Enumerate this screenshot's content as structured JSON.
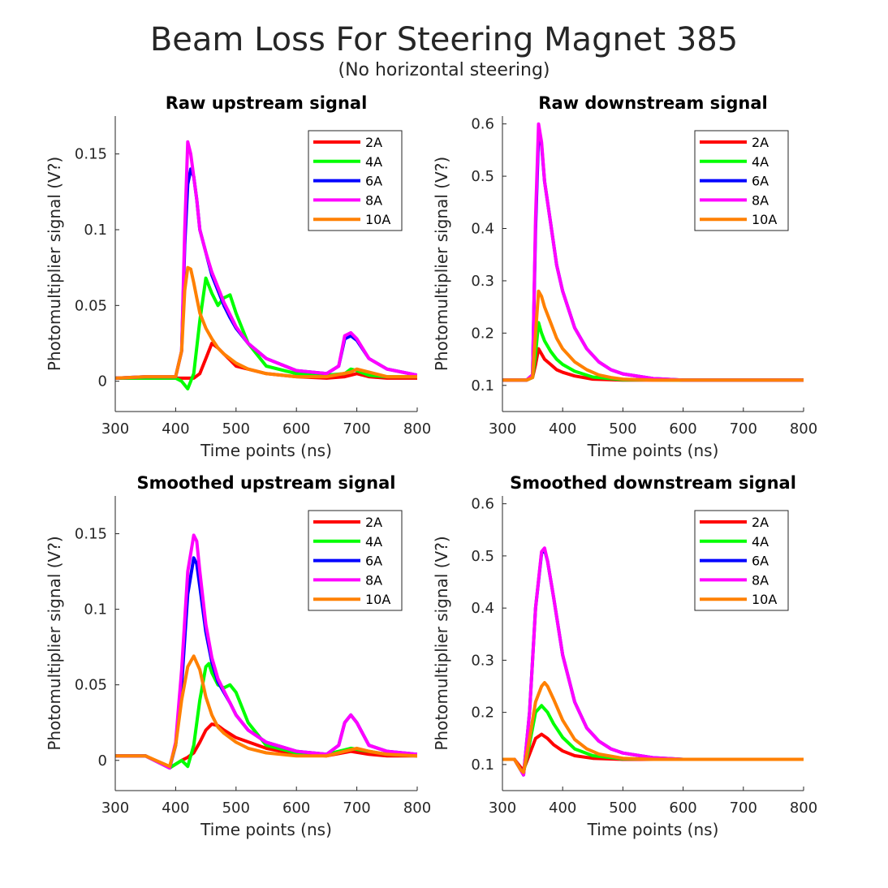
{
  "figure": {
    "title": "Beam Loss For Steering Magnet 385",
    "subtitle": "(No horizontal steering)"
  },
  "colors": {
    "2A": "#ff0000",
    "4A": "#00ff00",
    "6A": "#0000ff",
    "8A": "#ff00ff",
    "10A": "#ff8000"
  },
  "chart_data": [
    {
      "type": "line",
      "title": "Raw upstream signal",
      "xlabel": "Time points (ns)",
      "ylabel": "Photomultiplier signal (V?)",
      "xlim": [
        300,
        800
      ],
      "ylim": [
        -0.02,
        0.175
      ],
      "xticks": [
        300,
        400,
        500,
        600,
        700,
        800
      ],
      "yticks": [
        0,
        0.05,
        0.1,
        0.15
      ],
      "ytick_labels": [
        "0",
        "0.05",
        "0.1",
        "0.15"
      ],
      "legend": "top-right",
      "series": [
        {
          "name": "2A",
          "color": "#ff0000",
          "x": [
            300,
            350,
            400,
            430,
            440,
            450,
            460,
            470,
            480,
            490,
            500,
            550,
            600,
            650,
            680,
            700,
            720,
            750,
            800
          ],
          "y": [
            0.002,
            0.002,
            0.002,
            0.002,
            0.005,
            0.015,
            0.025,
            0.022,
            0.018,
            0.014,
            0.01,
            0.005,
            0.003,
            0.002,
            0.003,
            0.005,
            0.003,
            0.002,
            0.002
          ]
        },
        {
          "name": "4A",
          "color": "#00ff00",
          "x": [
            300,
            350,
            400,
            410,
            420,
            430,
            440,
            450,
            460,
            470,
            480,
            490,
            500,
            520,
            550,
            600,
            650,
            680,
            690,
            700,
            720,
            750,
            800
          ],
          "y": [
            0.002,
            0.002,
            0.002,
            0.0,
            -0.005,
            0.005,
            0.04,
            0.068,
            0.058,
            0.05,
            0.055,
            0.057,
            0.045,
            0.025,
            0.01,
            0.005,
            0.004,
            0.005,
            0.008,
            0.007,
            0.004,
            0.003,
            0.003
          ]
        },
        {
          "name": "6A",
          "color": "#0000ff",
          "x": [
            300,
            350,
            400,
            410,
            415,
            420,
            425,
            430,
            435,
            440,
            450,
            460,
            470,
            480,
            490,
            500,
            520,
            550,
            600,
            650,
            670,
            680,
            690,
            700,
            720,
            750,
            800
          ],
          "y": [
            0.002,
            0.003,
            0.003,
            0.02,
            0.09,
            0.13,
            0.14,
            0.135,
            0.12,
            0.1,
            0.085,
            0.07,
            0.06,
            0.05,
            0.042,
            0.035,
            0.025,
            0.015,
            0.007,
            0.005,
            0.01,
            0.028,
            0.03,
            0.027,
            0.015,
            0.008,
            0.004
          ]
        },
        {
          "name": "8A",
          "color": "#ff00ff",
          "x": [
            300,
            350,
            400,
            410,
            415,
            420,
            425,
            430,
            435,
            440,
            450,
            460,
            470,
            480,
            490,
            500,
            520,
            550,
            600,
            650,
            670,
            680,
            690,
            700,
            720,
            750,
            800
          ],
          "y": [
            0.002,
            0.003,
            0.003,
            0.02,
            0.1,
            0.158,
            0.15,
            0.135,
            0.12,
            0.1,
            0.085,
            0.072,
            0.062,
            0.052,
            0.044,
            0.036,
            0.025,
            0.015,
            0.007,
            0.005,
            0.01,
            0.03,
            0.032,
            0.028,
            0.015,
            0.008,
            0.004
          ]
        },
        {
          "name": "10A",
          "color": "#ff8000",
          "x": [
            300,
            350,
            400,
            410,
            415,
            420,
            425,
            430,
            435,
            440,
            450,
            460,
            470,
            480,
            500,
            520,
            550,
            600,
            650,
            690,
            700,
            720,
            750,
            800
          ],
          "y": [
            0.002,
            0.003,
            0.003,
            0.02,
            0.06,
            0.075,
            0.074,
            0.065,
            0.055,
            0.045,
            0.035,
            0.028,
            0.022,
            0.018,
            0.012,
            0.008,
            0.005,
            0.003,
            0.003,
            0.006,
            0.008,
            0.006,
            0.003,
            0.003
          ]
        }
      ]
    },
    {
      "type": "line",
      "title": "Raw downstream signal",
      "xlabel": "Time points (ns)",
      "ylabel": "Photomultiplier signal (V?)",
      "xlim": [
        300,
        800
      ],
      "ylim": [
        0.05,
        0.615
      ],
      "xticks": [
        300,
        400,
        500,
        600,
        700,
        800
      ],
      "yticks": [
        0.1,
        0.2,
        0.3,
        0.4,
        0.5,
        0.6
      ],
      "ytick_labels": [
        "0.1",
        "0.2",
        "0.3",
        "0.4",
        "0.5",
        "0.6"
      ],
      "legend": "top-right",
      "series": [
        {
          "name": "2A",
          "color": "#ff0000",
          "x": [
            300,
            340,
            350,
            355,
            360,
            365,
            370,
            380,
            390,
            400,
            420,
            450,
            500,
            600,
            800
          ],
          "y": [
            0.11,
            0.11,
            0.115,
            0.14,
            0.17,
            0.16,
            0.15,
            0.14,
            0.13,
            0.125,
            0.118,
            0.112,
            0.11,
            0.11,
            0.11
          ]
        },
        {
          "name": "4A",
          "color": "#00ff00",
          "x": [
            300,
            340,
            350,
            355,
            360,
            365,
            370,
            380,
            390,
            400,
            420,
            450,
            500,
            600,
            800
          ],
          "y": [
            0.11,
            0.11,
            0.115,
            0.16,
            0.22,
            0.2,
            0.185,
            0.165,
            0.15,
            0.14,
            0.127,
            0.116,
            0.111,
            0.11,
            0.11
          ]
        },
        {
          "name": "6A",
          "color": "#0000ff",
          "x": [
            300,
            340,
            350,
            355,
            360,
            365,
            370,
            380,
            390,
            400,
            420,
            440,
            460,
            480,
            500,
            550,
            600,
            700,
            800
          ],
          "y": [
            0.11,
            0.11,
            0.12,
            0.4,
            0.58,
            0.56,
            0.49,
            0.41,
            0.33,
            0.28,
            0.21,
            0.17,
            0.145,
            0.13,
            0.122,
            0.113,
            0.11,
            0.11,
            0.11
          ]
        },
        {
          "name": "8A",
          "color": "#ff00ff",
          "x": [
            300,
            340,
            350,
            355,
            360,
            365,
            370,
            380,
            390,
            400,
            420,
            440,
            460,
            480,
            500,
            550,
            600,
            700,
            800
          ],
          "y": [
            0.11,
            0.11,
            0.12,
            0.42,
            0.6,
            0.565,
            0.49,
            0.41,
            0.33,
            0.28,
            0.21,
            0.17,
            0.145,
            0.13,
            0.122,
            0.113,
            0.11,
            0.11,
            0.11
          ]
        },
        {
          "name": "10A",
          "color": "#ff8000",
          "x": [
            300,
            340,
            350,
            355,
            360,
            365,
            370,
            380,
            390,
            400,
            420,
            440,
            460,
            480,
            500,
            550,
            600,
            800
          ],
          "y": [
            0.11,
            0.11,
            0.115,
            0.2,
            0.28,
            0.27,
            0.25,
            0.22,
            0.19,
            0.17,
            0.145,
            0.13,
            0.12,
            0.115,
            0.112,
            0.11,
            0.11,
            0.11
          ]
        }
      ]
    },
    {
      "type": "line",
      "title": "Smoothed upstream signal",
      "xlabel": "Time points (ns)",
      "ylabel": "Photomultiplier signal (V?)",
      "xlim": [
        300,
        800
      ],
      "ylim": [
        -0.02,
        0.175
      ],
      "xticks": [
        300,
        400,
        500,
        600,
        700,
        800
      ],
      "yticks": [
        0,
        0.05,
        0.1,
        0.15
      ],
      "ytick_labels": [
        "0",
        "0.05",
        "0.1",
        "0.15"
      ],
      "legend": "top-right",
      "series": [
        {
          "name": "2A",
          "color": "#ff0000",
          "x": [
            300,
            350,
            390,
            410,
            420,
            430,
            440,
            450,
            460,
            470,
            480,
            500,
            550,
            600,
            650,
            690,
            720,
            750,
            800
          ],
          "y": [
            0.003,
            0.003,
            -0.005,
            0.0,
            0.002,
            0.005,
            0.012,
            0.02,
            0.024,
            0.023,
            0.02,
            0.015,
            0.008,
            0.004,
            0.003,
            0.006,
            0.004,
            0.003,
            0.003
          ]
        },
        {
          "name": "4A",
          "color": "#00ff00",
          "x": [
            300,
            350,
            390,
            410,
            420,
            430,
            440,
            450,
            455,
            460,
            470,
            480,
            490,
            500,
            520,
            550,
            600,
            650,
            690,
            720,
            750,
            800
          ],
          "y": [
            0.003,
            0.003,
            -0.005,
            0.0,
            -0.004,
            0.01,
            0.04,
            0.062,
            0.064,
            0.058,
            0.05,
            0.048,
            0.05,
            0.045,
            0.025,
            0.01,
            0.005,
            0.004,
            0.008,
            0.006,
            0.004,
            0.003
          ]
        },
        {
          "name": "6A",
          "color": "#0000ff",
          "x": [
            300,
            350,
            390,
            400,
            410,
            420,
            430,
            435,
            440,
            450,
            460,
            470,
            480,
            490,
            500,
            520,
            550,
            600,
            650,
            670,
            680,
            690,
            700,
            720,
            750,
            800
          ],
          "y": [
            0.003,
            0.003,
            -0.005,
            0.01,
            0.05,
            0.11,
            0.134,
            0.13,
            0.115,
            0.085,
            0.065,
            0.052,
            0.045,
            0.038,
            0.03,
            0.02,
            0.012,
            0.006,
            0.004,
            0.01,
            0.025,
            0.03,
            0.025,
            0.01,
            0.006,
            0.004
          ]
        },
        {
          "name": "8A",
          "color": "#ff00ff",
          "x": [
            300,
            350,
            390,
            400,
            410,
            420,
            430,
            435,
            440,
            450,
            460,
            470,
            480,
            490,
            500,
            520,
            550,
            600,
            650,
            670,
            680,
            690,
            700,
            720,
            750,
            800
          ],
          "y": [
            0.003,
            0.003,
            -0.005,
            0.012,
            0.06,
            0.125,
            0.149,
            0.145,
            0.125,
            0.09,
            0.068,
            0.054,
            0.046,
            0.038,
            0.03,
            0.02,
            0.012,
            0.006,
            0.004,
            0.01,
            0.025,
            0.03,
            0.025,
            0.01,
            0.006,
            0.004
          ]
        },
        {
          "name": "10A",
          "color": "#ff8000",
          "x": [
            300,
            350,
            390,
            400,
            410,
            420,
            430,
            440,
            450,
            460,
            470,
            480,
            500,
            520,
            550,
            600,
            650,
            690,
            700,
            720,
            750,
            800
          ],
          "y": [
            0.003,
            0.003,
            -0.004,
            0.01,
            0.04,
            0.062,
            0.069,
            0.06,
            0.042,
            0.03,
            0.022,
            0.018,
            0.012,
            0.008,
            0.005,
            0.003,
            0.003,
            0.007,
            0.008,
            0.006,
            0.004,
            0.003
          ]
        }
      ]
    },
    {
      "type": "line",
      "title": "Smoothed downstream signal",
      "xlabel": "Time points (ns)",
      "ylabel": "Photomultiplier signal (V?)",
      "xlim": [
        300,
        800
      ],
      "ylim": [
        0.05,
        0.615
      ],
      "xticks": [
        300,
        400,
        500,
        600,
        700,
        800
      ],
      "yticks": [
        0.1,
        0.2,
        0.3,
        0.4,
        0.5,
        0.6
      ],
      "ytick_labels": [
        "0.1",
        "0.2",
        "0.3",
        "0.4",
        "0.5",
        "0.6"
      ],
      "legend": "top-right",
      "series": [
        {
          "name": "2A",
          "color": "#ff0000",
          "x": [
            300,
            320,
            330,
            335,
            345,
            355,
            365,
            375,
            385,
            400,
            420,
            450,
            500,
            600,
            800
          ],
          "y": [
            0.11,
            0.11,
            0.095,
            0.09,
            0.12,
            0.15,
            0.158,
            0.15,
            0.138,
            0.126,
            0.117,
            0.112,
            0.11,
            0.11,
            0.11
          ]
        },
        {
          "name": "4A",
          "color": "#00ff00",
          "x": [
            300,
            320,
            330,
            335,
            345,
            355,
            365,
            375,
            385,
            400,
            420,
            450,
            500,
            600,
            800
          ],
          "y": [
            0.11,
            0.11,
            0.09,
            0.085,
            0.14,
            0.2,
            0.213,
            0.2,
            0.178,
            0.152,
            0.13,
            0.117,
            0.111,
            0.11,
            0.11
          ]
        },
        {
          "name": "6A",
          "color": "#0000ff",
          "x": [
            300,
            320,
            330,
            335,
            345,
            355,
            365,
            370,
            375,
            385,
            400,
            420,
            440,
            460,
            480,
            500,
            550,
            600,
            800
          ],
          "y": [
            0.11,
            0.11,
            0.09,
            0.08,
            0.2,
            0.4,
            0.505,
            0.512,
            0.49,
            0.42,
            0.31,
            0.22,
            0.17,
            0.145,
            0.13,
            0.122,
            0.113,
            0.11,
            0.11
          ]
        },
        {
          "name": "8A",
          "color": "#ff00ff",
          "x": [
            300,
            320,
            330,
            335,
            345,
            355,
            365,
            370,
            375,
            385,
            400,
            420,
            440,
            460,
            480,
            500,
            550,
            600,
            800
          ],
          "y": [
            0.11,
            0.11,
            0.09,
            0.08,
            0.2,
            0.4,
            0.508,
            0.515,
            0.49,
            0.42,
            0.31,
            0.22,
            0.17,
            0.145,
            0.13,
            0.122,
            0.113,
            0.11,
            0.11
          ]
        },
        {
          "name": "10A",
          "color": "#ff8000",
          "x": [
            300,
            320,
            330,
            335,
            345,
            355,
            365,
            370,
            375,
            385,
            400,
            420,
            440,
            460,
            500,
            550,
            600,
            800
          ],
          "y": [
            0.11,
            0.11,
            0.09,
            0.085,
            0.15,
            0.22,
            0.25,
            0.257,
            0.25,
            0.225,
            0.185,
            0.148,
            0.13,
            0.12,
            0.112,
            0.11,
            0.11,
            0.11
          ]
        }
      ]
    }
  ]
}
